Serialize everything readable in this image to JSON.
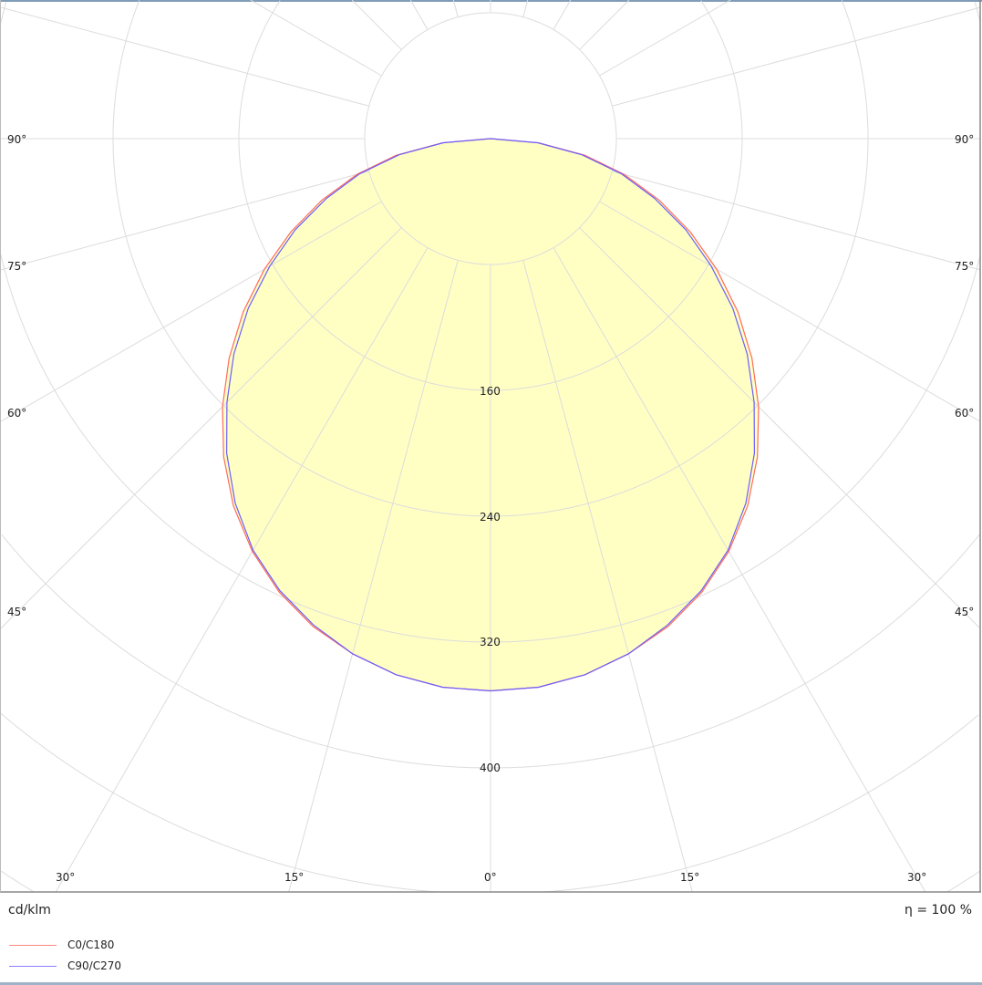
{
  "chart_data": {
    "type": "polar",
    "unit_label": "cd/klm",
    "efficiency_label": "η = 100 %",
    "radial_ticks": [
      80,
      160,
      240,
      320,
      400,
      480,
      560
    ],
    "radial_tick_labels": [
      "160",
      "240",
      "320",
      "400"
    ],
    "angle_labels_side": [
      "90°",
      "75°",
      "60°",
      "45°"
    ],
    "angle_labels_bottom": [
      "30°",
      "15°",
      "0°",
      "15°",
      "30°"
    ],
    "angles_deg": [
      0,
      5,
      10,
      15,
      20,
      25,
      30,
      35,
      40,
      45,
      50,
      55,
      60,
      65,
      70,
      75,
      80,
      85,
      90
    ],
    "series": [
      {
        "name": "C0/C180",
        "color": "#ff6b5e",
        "values": [
          351,
          350,
          346,
          339,
          330,
          318,
          303,
          285,
          264,
          241,
          217,
          192,
          166,
          140,
          114,
          88,
          61,
          31,
          0
        ]
      },
      {
        "name": "C90/C270",
        "color": "#6b5eff",
        "values": [
          351,
          350,
          346,
          339,
          329,
          317,
          302,
          283,
          261,
          237,
          213,
          188,
          162,
          137,
          111,
          86,
          59,
          30,
          0
        ]
      }
    ],
    "fill_color": "#ffffc4",
    "grid": true
  }
}
